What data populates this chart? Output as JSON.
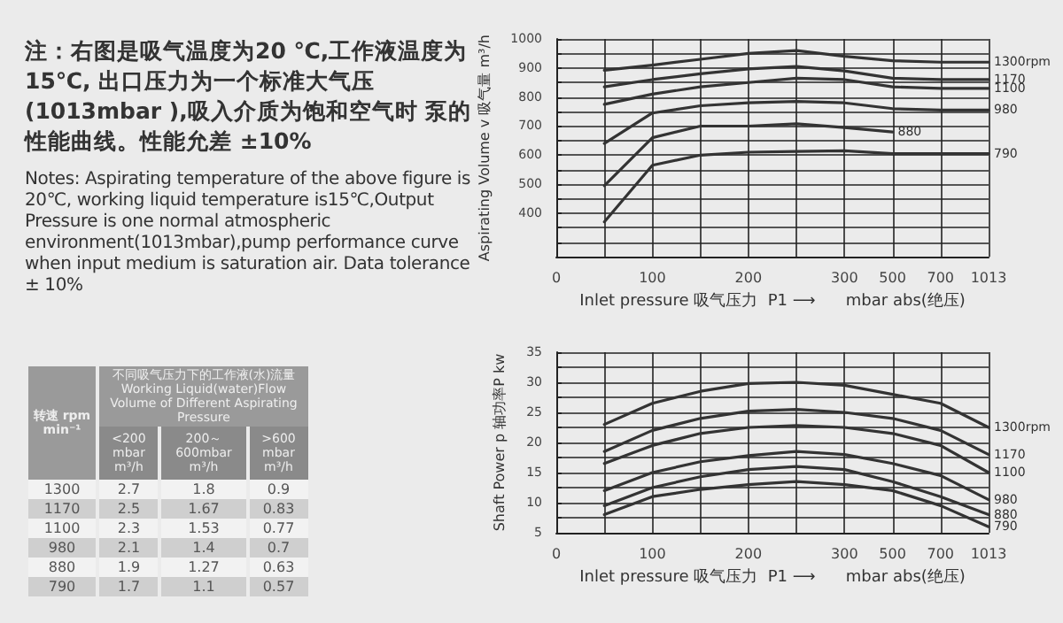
{
  "chart_data": [
    {
      "type": "other",
      "annotations": [
        "注：右图是吸气温度为20 ℃,工作液温度为15℃, 出口压力为一个标准大气压(1013mbar ),吸入介质为饱和空气时 泵的性能曲线。性能允差 ±10%",
        "Notes: Aspirating temperature of the above figure is 20℃, working liquid temperature is15℃,Output Pressure is one normal atmospheric environment(1013mbar),pump performance curve when input medium is saturation air. Data tolerance ± 10%"
      ]
    },
    {
      "type": "other",
      "title": "不同吸气压力下的工作液(水)流量 Working Liquid(water)Flow Volume of Different Aspirating Pressure",
      "ylabel": "转速 rpm min⁻¹",
      "categories": [
        "1300",
        "1170",
        "1100",
        "980",
        "880",
        "790"
      ],
      "data_labels": true,
      "series": [
        {
          "name": "<200 mbar m³/h",
          "values": [
            2.7,
            2.5,
            2.3,
            2.1,
            1.9,
            1.7
          ],
          "colors": [
            "#f2f2f2",
            "#cfcfcf",
            "#f2f2f2",
            "#cfcfcf",
            "#f2f2f2",
            "#cfcfcf"
          ]
        },
        {
          "name": "200～600mbar m³/h",
          "values": [
            1.8,
            1.67,
            1.53,
            1.4,
            1.27,
            1.1
          ],
          "colors": [
            "#f2f2f2",
            "#cfcfcf",
            "#f2f2f2",
            "#cfcfcf",
            "#f2f2f2",
            "#cfcfcf"
          ]
        },
        {
          "name": ">600 mbar m³/h",
          "values": [
            0.9,
            0.83,
            0.77,
            0.7,
            0.63,
            0.57
          ],
          "colors": [
            "#f2f2f2",
            "#cfcfcf",
            "#f2f2f2",
            "#cfcfcf",
            "#f2f2f2",
            "#cfcfcf"
          ]
        }
      ]
    },
    {
      "type": "line",
      "xlabel": "Inlet pressure 吸气压力  P1 ⟶      mbar abs(绝压)",
      "ylabel": "Aspirating Volume v 吸气量 m³/h",
      "categories": [
        "0",
        null,
        "100",
        null,
        "200",
        null,
        "300",
        "500",
        "700",
        "1013"
      ],
      "ylim": [
        250,
        1000
      ],
      "yticks": [
        {
          "value": 250,
          "label": null
        },
        {
          "value": 300,
          "label": null
        },
        {
          "value": 350,
          "label": null
        },
        400,
        {
          "value": 450,
          "label": null
        },
        500,
        {
          "value": 550,
          "label": null
        },
        600,
        {
          "value": 650,
          "label": null
        },
        700,
        {
          "value": 750,
          "label": null
        },
        800,
        {
          "value": 850,
          "label": null
        },
        900,
        {
          "value": 950,
          "label": null
        },
        1000
      ],
      "grid": true,
      "marker": "none",
      "line_style": "solid",
      "series": [
        {
          "name": "1300rpm",
          "color": "#333333",
          "values": [
            null,
            892,
            910,
            930,
            950,
            960,
            940,
            925,
            920,
            920
          ]
        },
        {
          "name": "1170",
          "color": "#333333",
          "values": [
            null,
            835,
            860,
            880,
            897,
            905,
            890,
            865,
            860,
            860
          ]
        },
        {
          "name": "1100",
          "color": "#333333",
          "values": [
            null,
            775,
            810,
            835,
            850,
            865,
            860,
            835,
            830,
            830
          ]
        },
        {
          "name": "980",
          "color": "#333333",
          "values": [
            null,
            640,
            745,
            770,
            780,
            785,
            780,
            760,
            755,
            755
          ]
        },
        {
          "name": "880",
          "color": "#333333",
          "values": [
            null,
            495,
            660,
            700,
            700,
            708,
            695,
            680,
            null,
            null
          ]
        },
        {
          "name": "790",
          "color": "#333333",
          "values": [
            null,
            370,
            565,
            600,
            610,
            613,
            615,
            605,
            605,
            605
          ]
        }
      ]
    },
    {
      "type": "line",
      "xlabel": "Inlet pressure 吸气压力  P1 ⟶      mbar abs(绝压)",
      "ylabel": "Shaft Power p 轴功率P kw",
      "categories": [
        "0",
        null,
        "100",
        null,
        "200",
        null,
        "300",
        "500",
        "700",
        "1013"
      ],
      "ylim": [
        5,
        35
      ],
      "yticks": [
        5,
        {
          "value": 7.5,
          "label": null
        },
        10,
        {
          "value": 12.5,
          "label": null
        },
        15,
        {
          "value": 17.5,
          "label": null
        },
        20,
        {
          "value": 22.5,
          "label": null
        },
        25,
        {
          "value": 27.5,
          "label": null
        },
        30,
        {
          "value": 32.5,
          "label": null
        },
        35
      ],
      "grid": true,
      "marker": "none",
      "line_style": "solid",
      "series": [
        {
          "name": "1300rpm",
          "color": "#333333",
          "values": [
            null,
            23,
            26.5,
            28.5,
            29.8,
            30,
            29.5,
            28,
            26.5,
            22.5
          ]
        },
        {
          "name": "1170",
          "color": "#333333",
          "values": [
            null,
            18.5,
            22,
            24,
            25.2,
            25.5,
            25,
            24,
            22,
            18
          ]
        },
        {
          "name": "1100",
          "color": "#333333",
          "values": [
            null,
            16.5,
            19.5,
            21.5,
            22.5,
            22.8,
            22.5,
            21.5,
            19.5,
            15
          ]
        },
        {
          "name": "980",
          "color": "#333333",
          "values": [
            null,
            12,
            15,
            16.8,
            17.8,
            18.5,
            18,
            16.5,
            14.5,
            10.5
          ]
        },
        {
          "name": "880",
          "color": "#333333",
          "values": [
            null,
            9.5,
            12.5,
            14.3,
            15.5,
            16,
            15.5,
            13.5,
            11,
            8
          ]
        },
        {
          "name": "790",
          "color": "#333333",
          "values": [
            null,
            8,
            11,
            12.2,
            13,
            13.5,
            13,
            12,
            9.5,
            6
          ]
        }
      ]
    }
  ]
}
